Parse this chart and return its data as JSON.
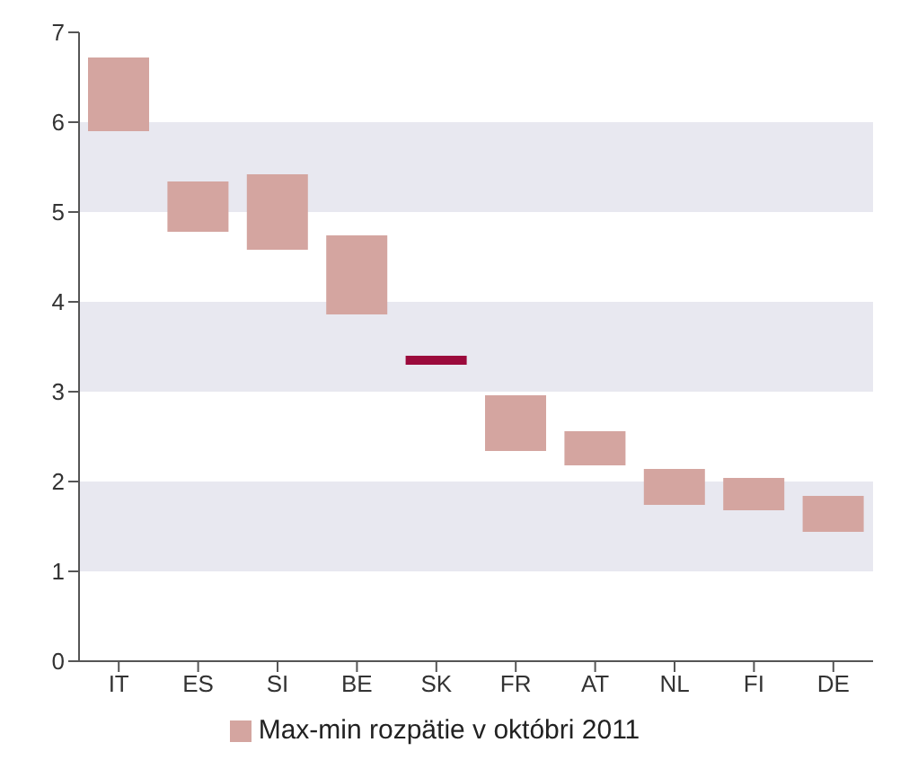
{
  "chart_data": {
    "type": "bar",
    "categories": [
      "IT",
      "ES",
      "SI",
      "BE",
      "SK",
      "FR",
      "AT",
      "NL",
      "FI",
      "DE"
    ],
    "series": [
      {
        "name": "Max-min rozpätie v októbri 2011",
        "color": "#d4a5a0",
        "colors": [
          "#d4a5a0",
          "#d4a5a0",
          "#d4a5a0",
          "#d4a5a0",
          "#9b0a3c",
          "#d4a5a0",
          "#d4a5a0",
          "#d4a5a0",
          "#d4a5a0",
          "#d4a5a0"
        ],
        "values": [
          0.82,
          0.56,
          0.84,
          0.88,
          0.1,
          0.62,
          0.38,
          0.4,
          0.36,
          0.4
        ],
        "base": [
          5.9,
          4.78,
          4.58,
          3.86,
          3.3,
          2.34,
          2.18,
          1.74,
          1.68,
          1.44
        ]
      }
    ],
    "ylim": [
      0,
      7
    ],
    "yticks": [
      0,
      1,
      2,
      3,
      4,
      5,
      6,
      7
    ],
    "bands": [
      {
        "axis": "y",
        "from": 1,
        "to": 2,
        "color": "#e8e8f0"
      },
      {
        "axis": "y",
        "from": 3,
        "to": 4,
        "color": "#e8e8f0"
      },
      {
        "axis": "y",
        "from": 5,
        "to": 6,
        "color": "#e8e8f0"
      }
    ],
    "grid": false,
    "legend": "bottom"
  }
}
